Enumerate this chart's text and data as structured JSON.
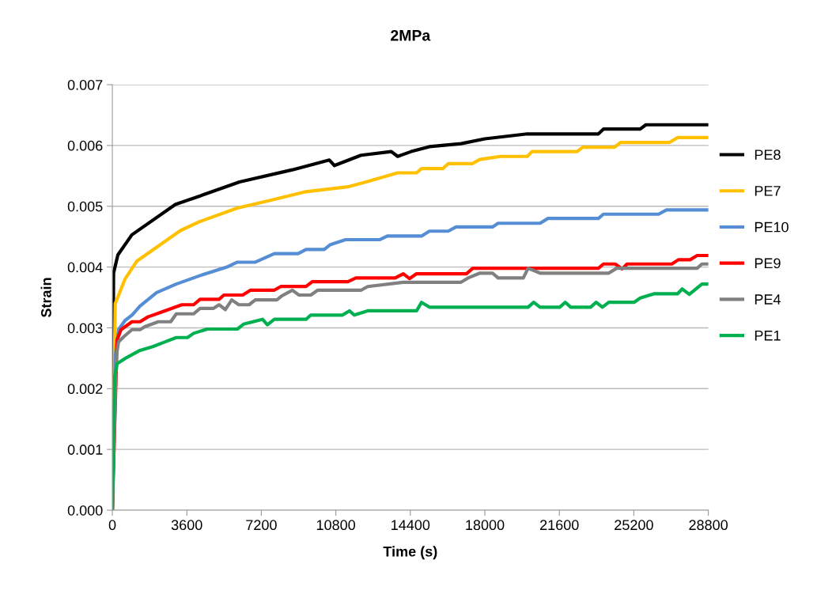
{
  "chart_data": {
    "type": "line",
    "title": "2MPa",
    "xlabel": "Time (s)",
    "ylabel": "Strain",
    "xlim": [
      0,
      28800
    ],
    "xticks": [
      0,
      3600,
      7200,
      10800,
      14400,
      18000,
      21600,
      25200,
      28800
    ],
    "ylim": [
      0,
      0.007
    ],
    "yticks": [
      {
        "value": 0,
        "label": "0.000"
      },
      0.001,
      0.002,
      0.003,
      0.004,
      0.005,
      0.006,
      0.007
    ],
    "grid": "y",
    "legend": "right",
    "marker": "none",
    "line_style": "solid",
    "series": [
      {
        "name": "PE8",
        "color": "#000000",
        "x": [
          0,
          60,
          267,
          943,
          3044,
          4240,
          6150,
          8700,
          10490,
          10730,
          12020,
          13480,
          13790,
          14440,
          15320,
          16850,
          18000,
          20050,
          23490,
          23730,
          25510,
          25780,
          28800
        ],
        "values": [
          0,
          0.0039,
          0.0042,
          0.00453,
          0.00503,
          0.00517,
          0.0054,
          0.0056,
          0.00576,
          0.00567,
          0.00584,
          0.0059,
          0.00582,
          0.0059,
          0.00598,
          0.00603,
          0.00611,
          0.00619,
          0.00619,
          0.00627,
          0.00627,
          0.00634,
          0.00634
        ]
      },
      {
        "name": "PE7",
        "color": "#ffc000",
        "x": [
          0,
          140,
          610,
          1190,
          3290,
          4240,
          6040,
          7680,
          9360,
          11380,
          12260,
          13790,
          14700,
          14940,
          15970,
          16230,
          17380,
          17760,
          18750,
          20050,
          20280,
          22460,
          22730,
          24260,
          24560,
          26930,
          27310,
          28800
        ],
        "values": [
          0,
          0.0034,
          0.0038,
          0.0041,
          0.0046,
          0.00475,
          0.00497,
          0.0051,
          0.00524,
          0.00532,
          0.0054,
          0.00555,
          0.00555,
          0.00562,
          0.00562,
          0.0057,
          0.0057,
          0.00577,
          0.00582,
          0.00582,
          0.0059,
          0.0059,
          0.00597,
          0.00597,
          0.00605,
          0.00605,
          0.00613,
          0.00613
        ]
      },
      {
        "name": "PE10",
        "color": "#558ed5",
        "x": [
          0,
          150,
          300,
          610,
          950,
          1340,
          2140,
          3090,
          4240,
          5540,
          6040,
          6910,
          7830,
          8980,
          9360,
          10240,
          10540,
          11270,
          12910,
          13290,
          14940,
          15320,
          16230,
          16610,
          18370,
          18640,
          20670,
          21050,
          23490,
          23730,
          26400,
          26780,
          28800
        ],
        "values": [
          0,
          0.00254,
          0.00297,
          0.00312,
          0.00321,
          0.00336,
          0.00358,
          0.00372,
          0.00386,
          0.004,
          0.00408,
          0.00408,
          0.00422,
          0.00422,
          0.00429,
          0.00429,
          0.00437,
          0.00445,
          0.00445,
          0.00451,
          0.00451,
          0.00459,
          0.00459,
          0.00466,
          0.00466,
          0.00472,
          0.00472,
          0.0048,
          0.0048,
          0.00487,
          0.00487,
          0.00494,
          0.00494
        ]
      },
      {
        "name": "PE9",
        "color": "#ff0000",
        "x": [
          0,
          230,
          420,
          950,
          1340,
          1720,
          2220,
          3360,
          3930,
          4240,
          5160,
          5390,
          6300,
          6680,
          7830,
          8140,
          9360,
          9660,
          11380,
          11770,
          13670,
          14060,
          14360,
          14700,
          17110,
          17420,
          23490,
          23730,
          24300,
          24640,
          24870,
          27040,
          27350,
          27920,
          28260,
          28800
        ],
        "values": [
          0,
          0.0028,
          0.00297,
          0.0031,
          0.0031,
          0.00318,
          0.00324,
          0.00338,
          0.00338,
          0.00347,
          0.00347,
          0.00354,
          0.00354,
          0.00362,
          0.00362,
          0.00368,
          0.00368,
          0.00376,
          0.00376,
          0.00382,
          0.00382,
          0.00389,
          0.00381,
          0.00389,
          0.00389,
          0.00398,
          0.00398,
          0.00405,
          0.00405,
          0.00397,
          0.00405,
          0.00405,
          0.00412,
          0.00412,
          0.00419,
          0.00419
        ]
      },
      {
        "name": "PE4",
        "color": "#808080",
        "x": [
          0,
          190,
          300,
          570,
          950,
          1340,
          1570,
          2220,
          2820,
          3090,
          3930,
          4240,
          4890,
          5160,
          5460,
          5770,
          6110,
          6610,
          6910,
          7950,
          8210,
          8700,
          9010,
          9590,
          9930,
          12030,
          12340,
          14060,
          16850,
          17190,
          17760,
          18370,
          18640,
          19860,
          20090,
          20670,
          23990,
          24370,
          28260,
          28490,
          28800
        ],
        "values": [
          0,
          0.00254,
          0.00277,
          0.00286,
          0.00297,
          0.00297,
          0.00302,
          0.0031,
          0.0031,
          0.00323,
          0.00323,
          0.00332,
          0.00332,
          0.00338,
          0.0033,
          0.00346,
          0.00338,
          0.00338,
          0.00346,
          0.00346,
          0.00353,
          0.00362,
          0.00354,
          0.00354,
          0.00362,
          0.00362,
          0.00368,
          0.00375,
          0.00375,
          0.00382,
          0.0039,
          0.0039,
          0.00382,
          0.00382,
          0.00398,
          0.0039,
          0.0039,
          0.00398,
          0.00398,
          0.00405,
          0.00405
        ]
      },
      {
        "name": "PE1",
        "color": "#00b050",
        "x": [
          0,
          110,
          230,
          690,
          1340,
          1950,
          2480,
          3090,
          3630,
          3930,
          4580,
          6040,
          6340,
          7260,
          7490,
          7830,
          9360,
          9590,
          11120,
          11460,
          11690,
          12340,
          14700,
          14940,
          15320,
          20090,
          20360,
          20670,
          21620,
          21890,
          22150,
          23110,
          23380,
          23680,
          23990,
          25210,
          25510,
          26160,
          27310,
          27540,
          27880,
          28490,
          28800
        ],
        "values": [
          0,
          0.00219,
          0.00241,
          0.00251,
          0.00263,
          0.00269,
          0.00276,
          0.00284,
          0.00284,
          0.00291,
          0.00298,
          0.00298,
          0.00306,
          0.00314,
          0.00305,
          0.00314,
          0.00314,
          0.00321,
          0.00321,
          0.00328,
          0.00321,
          0.00328,
          0.00328,
          0.00342,
          0.00334,
          0.00334,
          0.00342,
          0.00334,
          0.00334,
          0.00342,
          0.00334,
          0.00334,
          0.00342,
          0.00334,
          0.00342,
          0.00342,
          0.00349,
          0.00356,
          0.00356,
          0.00364,
          0.00355,
          0.00372,
          0.00372
        ]
      }
    ]
  }
}
